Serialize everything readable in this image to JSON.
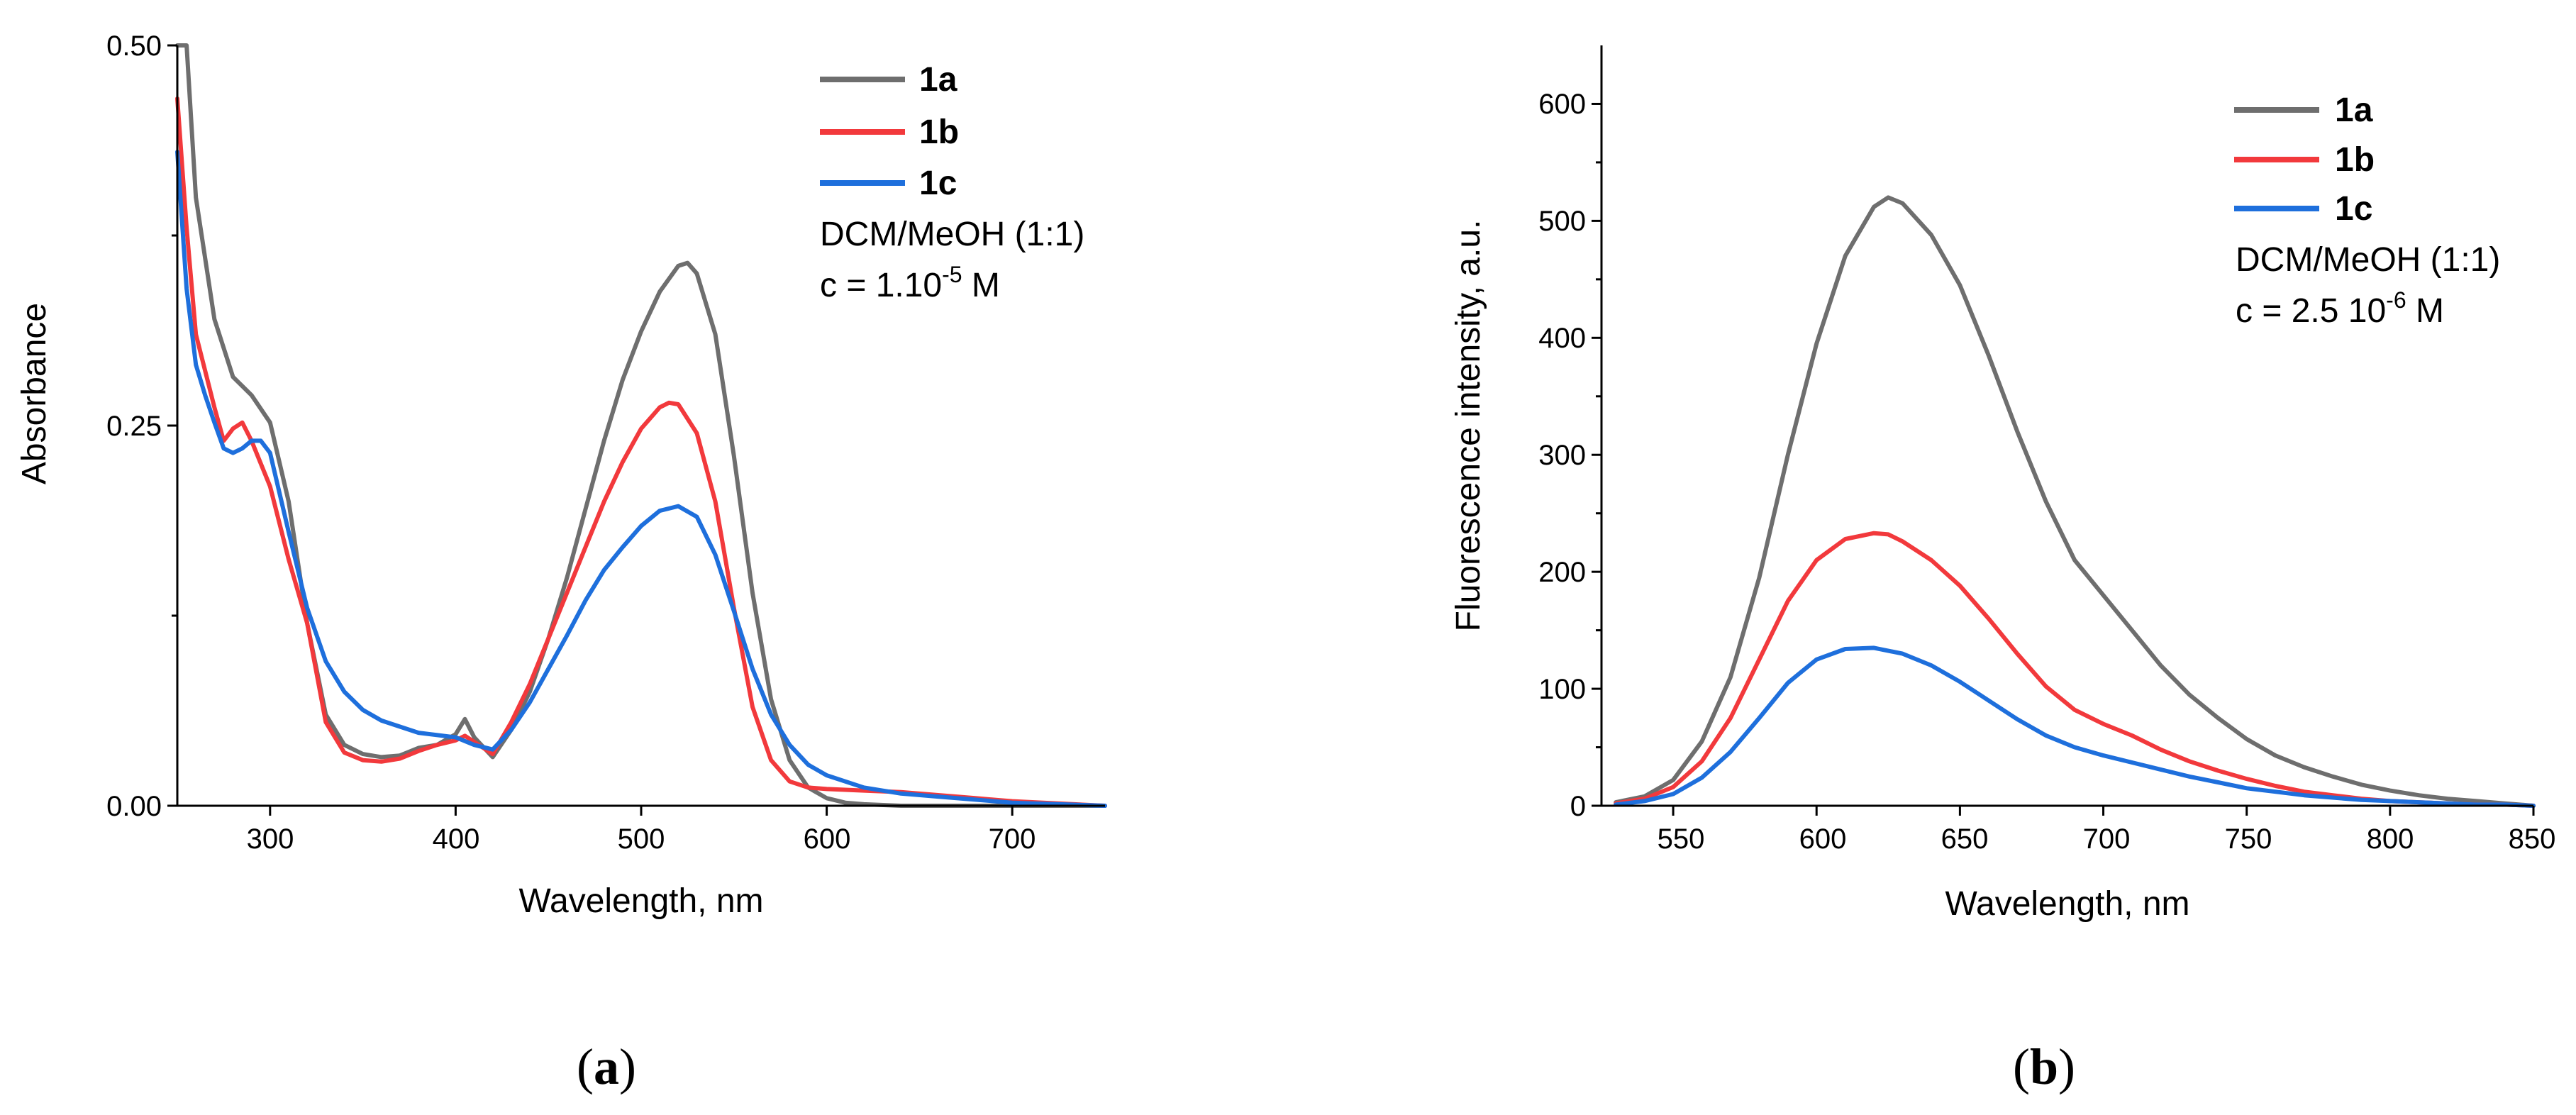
{
  "chart_data": [
    {
      "type": "line",
      "title": "",
      "xlabel": "Wavelength, nm",
      "ylabel": "Absorbance",
      "xlim": [
        250,
        750
      ],
      "ylim": [
        0,
        0.5
      ],
      "xticks": [
        300,
        400,
        500,
        600,
        700
      ],
      "xtick_labels": [
        "300",
        "400",
        "500",
        "600",
        "700"
      ],
      "yticks": [
        0,
        0.25,
        0.5
      ],
      "ytick_labels": [
        "0.00",
        "0.25",
        "0.50"
      ],
      "minor_yticks": [
        0.125,
        0.375
      ],
      "grid": false,
      "legend_position": "top-right",
      "annotations": {
        "solvent": "DCM/MeOH (1:1)",
        "conc_prefix": "c = 1.10",
        "conc_exponent": "-5",
        "conc_suffix": " M"
      },
      "panel_label": "a",
      "series": [
        {
          "name": "1a",
          "color": "#6e6e6e",
          "x": [
            250,
            255,
            260,
            270,
            280,
            290,
            300,
            310,
            320,
            330,
            340,
            350,
            360,
            370,
            380,
            390,
            400,
            405,
            410,
            420,
            430,
            440,
            450,
            460,
            470,
            480,
            490,
            500,
            510,
            520,
            525,
            530,
            540,
            550,
            560,
            570,
            580,
            590,
            600,
            610,
            620,
            640,
            660,
            700,
            750
          ],
          "y": [
            0.5,
            0.5,
            0.4,
            0.32,
            0.282,
            0.27,
            0.252,
            0.2,
            0.12,
            0.06,
            0.04,
            0.034,
            0.032,
            0.033,
            0.038,
            0.04,
            0.047,
            0.057,
            0.045,
            0.032,
            0.05,
            0.075,
            0.11,
            0.15,
            0.195,
            0.24,
            0.28,
            0.312,
            0.338,
            0.355,
            0.357,
            0.35,
            0.31,
            0.23,
            0.14,
            0.07,
            0.03,
            0.012,
            0.005,
            0.002,
            0.001,
            0.0,
            0.0,
            0.0,
            0.0
          ]
        },
        {
          "name": "1b",
          "color": "#f2393c",
          "x": [
            250,
            255,
            260,
            270,
            275,
            280,
            285,
            290,
            300,
            310,
            320,
            330,
            340,
            350,
            360,
            370,
            380,
            390,
            400,
            405,
            410,
            420,
            430,
            440,
            450,
            460,
            470,
            480,
            490,
            500,
            510,
            515,
            520,
            530,
            540,
            550,
            560,
            570,
            580,
            590,
            600,
            620,
            640,
            660,
            680,
            700,
            750
          ],
          "y": [
            0.465,
            0.38,
            0.31,
            0.262,
            0.24,
            0.248,
            0.252,
            0.24,
            0.21,
            0.162,
            0.12,
            0.055,
            0.035,
            0.03,
            0.029,
            0.031,
            0.036,
            0.04,
            0.043,
            0.046,
            0.042,
            0.034,
            0.055,
            0.08,
            0.11,
            0.14,
            0.17,
            0.2,
            0.226,
            0.248,
            0.262,
            0.265,
            0.264,
            0.245,
            0.2,
            0.13,
            0.065,
            0.03,
            0.016,
            0.012,
            0.011,
            0.01,
            0.009,
            0.007,
            0.005,
            0.003,
            0.0
          ]
        },
        {
          "name": "1c",
          "color": "#1e6fdc",
          "x": [
            250,
            255,
            260,
            265,
            270,
            275,
            280,
            285,
            290,
            295,
            300,
            310,
            320,
            330,
            340,
            350,
            360,
            380,
            400,
            410,
            420,
            430,
            440,
            450,
            460,
            470,
            480,
            490,
            500,
            510,
            520,
            530,
            540,
            550,
            560,
            570,
            580,
            590,
            600,
            620,
            640,
            660,
            680,
            700,
            750
          ],
          "y": [
            0.43,
            0.34,
            0.29,
            0.27,
            0.252,
            0.235,
            0.232,
            0.235,
            0.24,
            0.24,
            0.232,
            0.18,
            0.13,
            0.095,
            0.075,
            0.063,
            0.056,
            0.048,
            0.045,
            0.04,
            0.037,
            0.05,
            0.068,
            0.09,
            0.112,
            0.135,
            0.155,
            0.17,
            0.184,
            0.194,
            0.197,
            0.19,
            0.165,
            0.128,
            0.09,
            0.06,
            0.04,
            0.027,
            0.02,
            0.012,
            0.008,
            0.006,
            0.004,
            0.002,
            0.0
          ]
        }
      ]
    },
    {
      "type": "line",
      "title": "",
      "xlabel": "Wavelength, nm",
      "ylabel": "Fluorescence intensity, a.u.",
      "xlim": [
        525,
        850
      ],
      "ylim": [
        0,
        650
      ],
      "xticks": [
        550,
        600,
        650,
        700,
        750,
        800,
        850
      ],
      "xtick_labels": [
        "550",
        "600",
        "650",
        "700",
        "750",
        "800",
        "850"
      ],
      "yticks": [
        0,
        100,
        200,
        300,
        400,
        500,
        600
      ],
      "ytick_labels": [
        "0",
        "100",
        "200",
        "300",
        "400",
        "500",
        "600"
      ],
      "minor_yticks": [
        50,
        150,
        250,
        350,
        450,
        550
      ],
      "grid": false,
      "legend_position": "top-right",
      "annotations": {
        "solvent": "DCM/MeOH (1:1)",
        "conc_prefix": "c = 2.5 10",
        "conc_exponent": "-6",
        "conc_suffix": " M"
      },
      "panel_label": "b",
      "series": [
        {
          "name": "1a",
          "color": "#6e6e6e",
          "x": [
            530,
            540,
            550,
            560,
            570,
            580,
            590,
            600,
            610,
            620,
            625,
            630,
            640,
            650,
            660,
            670,
            680,
            690,
            700,
            710,
            720,
            730,
            740,
            750,
            760,
            770,
            780,
            790,
            800,
            810,
            820,
            830,
            840,
            850
          ],
          "y": [
            3,
            8,
            22,
            55,
            110,
            195,
            300,
            395,
            470,
            512,
            520,
            515,
            488,
            445,
            385,
            320,
            260,
            210,
            180,
            150,
            120,
            95,
            75,
            57,
            43,
            33,
            25,
            18,
            13,
            9,
            6,
            4,
            2,
            0
          ]
        },
        {
          "name": "1b",
          "color": "#f2393c",
          "x": [
            530,
            540,
            550,
            560,
            570,
            580,
            590,
            600,
            610,
            620,
            625,
            630,
            640,
            650,
            660,
            670,
            680,
            690,
            700,
            710,
            720,
            730,
            740,
            750,
            760,
            770,
            780,
            790,
            800,
            810,
            820,
            830,
            840,
            850
          ],
          "y": [
            2,
            6,
            16,
            38,
            75,
            125,
            175,
            210,
            228,
            233,
            232,
            226,
            210,
            188,
            160,
            130,
            102,
            82,
            70,
            60,
            48,
            38,
            30,
            23,
            17,
            12,
            9,
            6,
            4,
            3,
            2,
            1,
            1,
            0
          ]
        },
        {
          "name": "1c",
          "color": "#1e6fdc",
          "x": [
            530,
            540,
            550,
            560,
            570,
            580,
            590,
            600,
            610,
            620,
            630,
            640,
            650,
            660,
            670,
            680,
            690,
            700,
            710,
            720,
            730,
            740,
            750,
            760,
            770,
            780,
            790,
            800,
            810,
            820,
            830,
            840,
            850
          ],
          "y": [
            1,
            4,
            10,
            24,
            46,
            75,
            105,
            125,
            134,
            135,
            130,
            120,
            106,
            90,
            74,
            60,
            50,
            43,
            37,
            31,
            25,
            20,
            15,
            12,
            9,
            7,
            5,
            4,
            3,
            2,
            1,
            1,
            0
          ]
        }
      ]
    }
  ]
}
